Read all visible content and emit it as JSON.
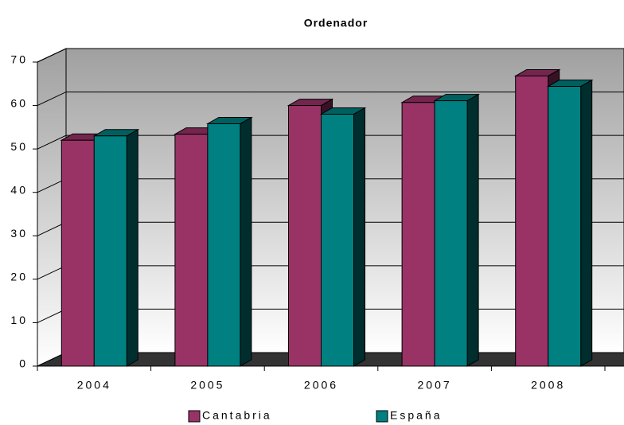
{
  "chart_data": {
    "type": "bar3d",
    "title": "Ordenador",
    "categories": [
      "2004",
      "2005",
      "2006",
      "2007",
      "2008"
    ],
    "series": [
      {
        "name": "Cantabria",
        "color": "#993366",
        "values": [
          52,
          53.4,
          60,
          60.7,
          66.8
        ]
      },
      {
        "name": "España",
        "color": "#008080",
        "values": [
          53,
          55.8,
          58,
          61.1,
          64.4
        ]
      }
    ],
    "ylim": [
      0,
      70
    ],
    "yticks": [
      0,
      10,
      20,
      30,
      40,
      50,
      60,
      70
    ],
    "grid": true,
    "legend": "bottom"
  }
}
